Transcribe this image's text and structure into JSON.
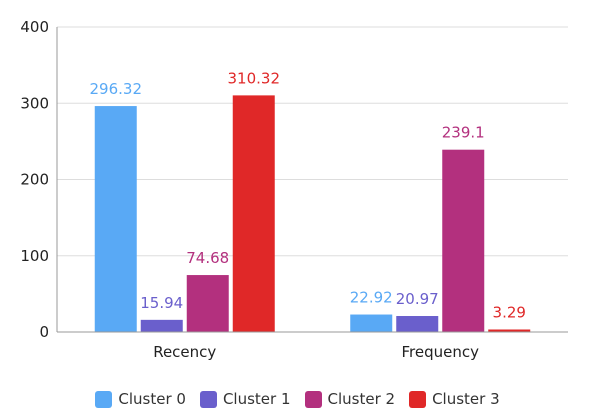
{
  "chart_data": {
    "type": "bar",
    "categories": [
      "Recency",
      "Frequency"
    ],
    "series": [
      {
        "name": "Cluster 0",
        "color": "#59a9f5",
        "label_color": "#59a9f5",
        "values": [
          296.32,
          22.92
        ]
      },
      {
        "name": "Cluster 1",
        "color": "#6a5fcc",
        "label_color": "#6a5fcc",
        "values": [
          15.94,
          20.97
        ]
      },
      {
        "name": "Cluster 2",
        "color": "#b3307e",
        "label_color": "#b3307e",
        "values": [
          74.68,
          239.1
        ]
      },
      {
        "name": "Cluster 3",
        "color": "#e02828",
        "label_color": "#e02828",
        "values": [
          310.32,
          3.29
        ]
      }
    ],
    "y_ticks": [
      "0",
      "100",
      "200",
      "300",
      "400"
    ],
    "ylim": [
      0,
      400
    ],
    "grid": true,
    "legend_position": "bottom",
    "title": "",
    "xlabel": "",
    "ylabel": ""
  }
}
